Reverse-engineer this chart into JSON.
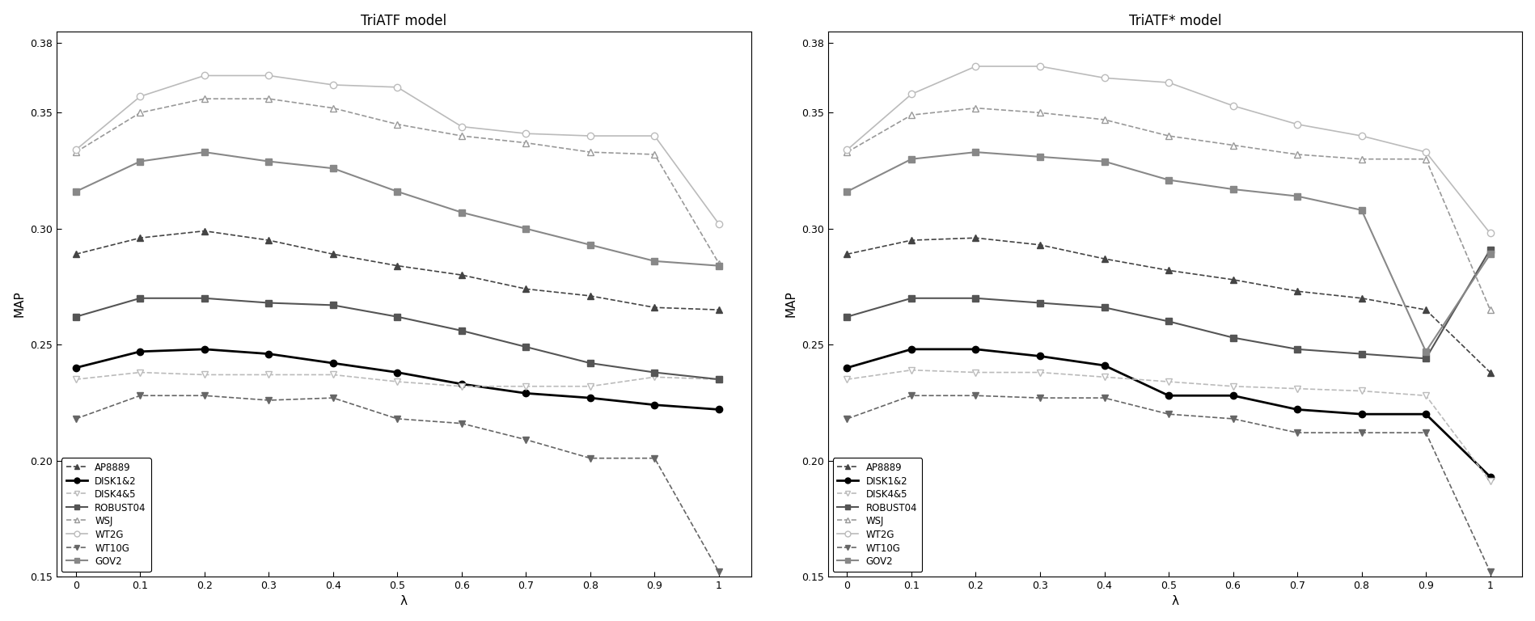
{
  "x": [
    0,
    0.1,
    0.2,
    0.3,
    0.4,
    0.5,
    0.6,
    0.7,
    0.8,
    0.9,
    1.0
  ],
  "left_title": "TriATF model",
  "right_title": "TriATF* model",
  "xlabel": "λ",
  "ylabel": "MAP",
  "series_left": {
    "AP8889": [
      0.289,
      0.296,
      0.299,
      0.295,
      0.289,
      0.284,
      0.28,
      0.274,
      0.271,
      0.266,
      0.265
    ],
    "DISK1&2": [
      0.24,
      0.247,
      0.248,
      0.246,
      0.242,
      0.238,
      0.233,
      0.229,
      0.227,
      0.224,
      0.222
    ],
    "DISK4&5": [
      0.235,
      0.238,
      0.237,
      0.237,
      0.237,
      0.234,
      0.232,
      0.232,
      0.232,
      0.236,
      0.235
    ],
    "ROBUST04": [
      0.262,
      0.27,
      0.27,
      0.268,
      0.267,
      0.262,
      0.256,
      0.249,
      0.242,
      0.238,
      0.235
    ],
    "WSJ": [
      0.333,
      0.35,
      0.356,
      0.356,
      0.352,
      0.345,
      0.34,
      0.337,
      0.333,
      0.332,
      0.285
    ],
    "WT2G": [
      0.334,
      0.357,
      0.366,
      0.366,
      0.362,
      0.361,
      0.344,
      0.341,
      0.34,
      0.34,
      0.302
    ],
    "WT10G": [
      0.218,
      0.228,
      0.228,
      0.226,
      0.227,
      0.218,
      0.216,
      0.209,
      0.201,
      0.201,
      0.152
    ],
    "GOV2": [
      0.316,
      0.329,
      0.333,
      0.329,
      0.326,
      0.316,
      0.307,
      0.3,
      0.293,
      0.286,
      0.284
    ]
  },
  "series_right": {
    "AP8889": [
      0.289,
      0.295,
      0.296,
      0.293,
      0.287,
      0.282,
      0.278,
      0.273,
      0.27,
      0.265,
      0.238
    ],
    "DISK1&2": [
      0.24,
      0.248,
      0.248,
      0.245,
      0.241,
      0.228,
      0.228,
      0.222,
      0.22,
      0.22,
      0.193
    ],
    "DISK4&5": [
      0.235,
      0.239,
      0.238,
      0.238,
      0.236,
      0.234,
      0.232,
      0.231,
      0.23,
      0.228,
      0.191
    ],
    "ROBUST04": [
      0.262,
      0.27,
      0.27,
      0.268,
      0.266,
      0.26,
      0.253,
      0.248,
      0.246,
      0.244,
      0.291
    ],
    "WSJ": [
      0.333,
      0.349,
      0.352,
      0.35,
      0.347,
      0.34,
      0.336,
      0.332,
      0.33,
      0.33,
      0.265
    ],
    "WT2G": [
      0.334,
      0.358,
      0.37,
      0.37,
      0.365,
      0.363,
      0.353,
      0.345,
      0.34,
      0.333,
      0.298
    ],
    "WT10G": [
      0.218,
      0.228,
      0.228,
      0.227,
      0.227,
      0.22,
      0.218,
      0.212,
      0.212,
      0.212,
      0.152
    ],
    "GOV2": [
      0.316,
      0.33,
      0.333,
      0.331,
      0.329,
      0.321,
      0.317,
      0.314,
      0.308,
      0.247,
      0.289
    ]
  },
  "styles": {
    "AP8889": {
      "color": "#444444",
      "linestyle": "--",
      "marker": "^",
      "linewidth": 1.2,
      "markersize": 6,
      "filled": true
    },
    "DISK1&2": {
      "color": "#000000",
      "linestyle": "-",
      "marker": "o",
      "linewidth": 2.0,
      "markersize": 6,
      "filled": true
    },
    "DISK4&5": {
      "color": "#bbbbbb",
      "linestyle": "--",
      "marker": "v",
      "linewidth": 1.2,
      "markersize": 6,
      "filled": false
    },
    "ROBUST04": {
      "color": "#555555",
      "linestyle": "-",
      "marker": "s",
      "linewidth": 1.5,
      "markersize": 6,
      "filled": true
    },
    "WSJ": {
      "color": "#999999",
      "linestyle": "--",
      "marker": "^",
      "linewidth": 1.2,
      "markersize": 6,
      "filled": false
    },
    "WT2G": {
      "color": "#bbbbbb",
      "linestyle": "-",
      "marker": "o",
      "linewidth": 1.2,
      "markersize": 6,
      "filled": false
    },
    "WT10G": {
      "color": "#666666",
      "linestyle": "--",
      "marker": "v",
      "linewidth": 1.2,
      "markersize": 6,
      "filled": true
    },
    "GOV2": {
      "color": "#888888",
      "linestyle": "-",
      "marker": "s",
      "linewidth": 1.5,
      "markersize": 6,
      "filled": true
    }
  },
  "legend_order": [
    "AP8889",
    "DISK1&2",
    "DISK4&5",
    "ROBUST04",
    "WSJ",
    "WT2G",
    "WT10G",
    "GOV2"
  ],
  "background_color": "#ffffff",
  "fig_width": 18.99,
  "fig_height": 7.68
}
